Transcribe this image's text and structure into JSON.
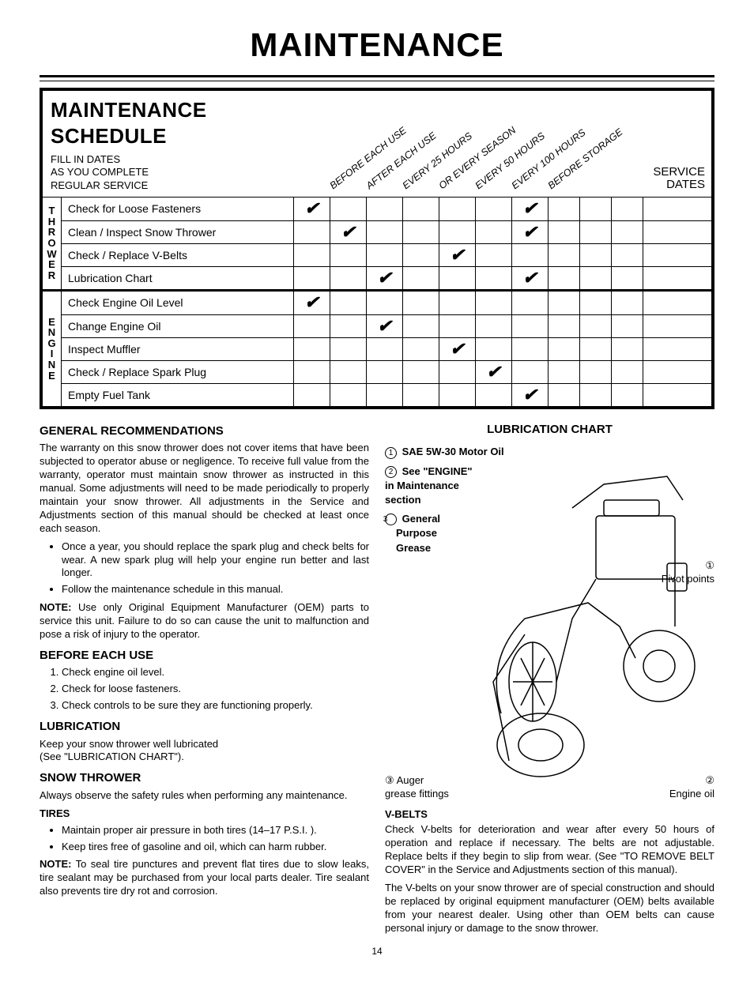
{
  "page_title": "MAINTENANCE",
  "schedule": {
    "title": "MAINTENANCE SCHEDULE",
    "subtitle_lines": [
      "FILL IN DATES",
      "AS YOU COMPLETE",
      "REGULAR SERVICE"
    ],
    "column_headers": [
      "BEFORE EACH USE",
      "AFTER EACH USE",
      "EVERY 25 HOURS",
      "OR EVERY SEASON",
      "EVERY 50 HOURS",
      "EVERY 100 HOURS",
      "BEFORE STORAGE"
    ],
    "service_dates_label": "SERVICE\nDATES",
    "groups": [
      {
        "label": "T\nH\nR\nO\nW\nE\nR",
        "rows": [
          {
            "task": "Check for Loose Fasteners",
            "checks": [
              "✔",
              "",
              "",
              "",
              "",
              "",
              "✔"
            ]
          },
          {
            "task": "Clean / Inspect Snow Thrower",
            "checks": [
              "",
              "✔",
              "",
              "",
              "",
              "",
              "✔"
            ]
          },
          {
            "task": "Check / Replace V-Belts",
            "checks": [
              "",
              "",
              "",
              "",
              "✔",
              "",
              ""
            ]
          },
          {
            "task": "Lubrication Chart",
            "checks": [
              "",
              "",
              "✔",
              "",
              "",
              "",
              "✔"
            ]
          }
        ]
      },
      {
        "label": "E\nN\nG\nI\nN\nE",
        "rows": [
          {
            "task": "Check Engine Oil Level",
            "checks": [
              "✔",
              "",
              "",
              "",
              "",
              "",
              ""
            ]
          },
          {
            "task": "Change Engine Oil",
            "checks": [
              "",
              "",
              "✔",
              "",
              "",
              "",
              ""
            ]
          },
          {
            "task": "Inspect Muffler",
            "checks": [
              "",
              "",
              "",
              "",
              "✔",
              "",
              ""
            ]
          },
          {
            "task": "Check / Replace Spark Plug",
            "checks": [
              "",
              "",
              "",
              "",
              "",
              "✔",
              ""
            ]
          },
          {
            "task": "Empty Fuel Tank",
            "checks": [
              "",
              "",
              "",
              "",
              "",
              "",
              "✔"
            ]
          }
        ]
      }
    ]
  },
  "left": {
    "h_general": "GENERAL RECOMMENDATIONS",
    "p_general": "The warranty on this snow thrower does not cover items that have been subjected to operator abuse or negligence. To receive full value from the warranty, operator must maintain snow thrower as instructed in this manual.  Some adjustments will need to be made periodically to properly maintain your snow thrower.  All adjustments in the Service and Adjustments section of this manual should be checked at least once each season.",
    "bul_general": [
      "Once a year, you should replace the spark plug and check belts for wear.  A new spark plug will help your engine run better and last longer.",
      "Follow the maintenance schedule in this manual."
    ],
    "note_general_label": "NOTE:",
    "note_general": " Use only Original Equipment Manufacturer (OEM) parts to service this unit.  Failure to do so can cause the unit to malfunction and pose a risk of injury to the operator.",
    "h_before": "BEFORE EACH USE",
    "ol_before": [
      "Check engine oil level.",
      "Check for loose fasteners.",
      "Check controls to be sure they are functioning properly."
    ],
    "h_lub": "LUBRICATION",
    "p_lub1": "Keep your snow thrower well lubricated",
    "p_lub2": "(See \"LUBRICATION CHART\").",
    "h_snow": "SNOW THROWER",
    "p_snow": "Always observe the safety rules when performing any maintenance.",
    "h_tires": "TIRES",
    "bul_tires": [
      "Maintain proper air pressure in both tires (14–17 P.S.I. ).",
      "Keep tires free of gasoline and oil, which can harm rubber."
    ],
    "note_tires_label": "NOTE:",
    "note_tires": " To seal tire punctures and prevent flat tires due to slow leaks, tire sealant may be purchased from your local parts dealer. Tire sealant also prevents tire dry rot and corrosion."
  },
  "right": {
    "h_chart": "LUBRICATION CHART",
    "legend": [
      {
        "n": "1",
        "text": "SAE 5W-30 Motor Oil",
        "bold": true
      },
      {
        "n": "2",
        "text": "See \"ENGINE\" in Maintenance section",
        "bold_first": "See \"ENGINE\""
      },
      {
        "n": "3",
        "text": "General Purpose Grease",
        "bold": true
      }
    ],
    "callouts": {
      "pivot_n": "①",
      "pivot": "Pivot points",
      "auger_n": "③",
      "auger": "Auger grease fittings",
      "engine_n": "②",
      "engine": "Engine oil"
    },
    "h_vbelts": "V-BELTS",
    "p_vbelts1": "Check V-belts for deterioration and wear after every 50 hours of operation and replace if necessary. The belts are not adjustable. Replace belts if they begin to slip from wear. (See \"TO REMOVE BELT COVER\" in the Service and Adjustments section of this manual).",
    "p_vbelts2": "The V-belts on your snow thrower are of special construction and should be replaced by original equipment manufacturer (OEM) belts available from your nearest dealer. Using other than OEM belts can cause personal injury or damage to the snow thrower."
  },
  "page_number": "14",
  "style": {
    "checkmark": "✔",
    "colors": {
      "fg": "#000000",
      "bg": "#ffffff"
    }
  }
}
